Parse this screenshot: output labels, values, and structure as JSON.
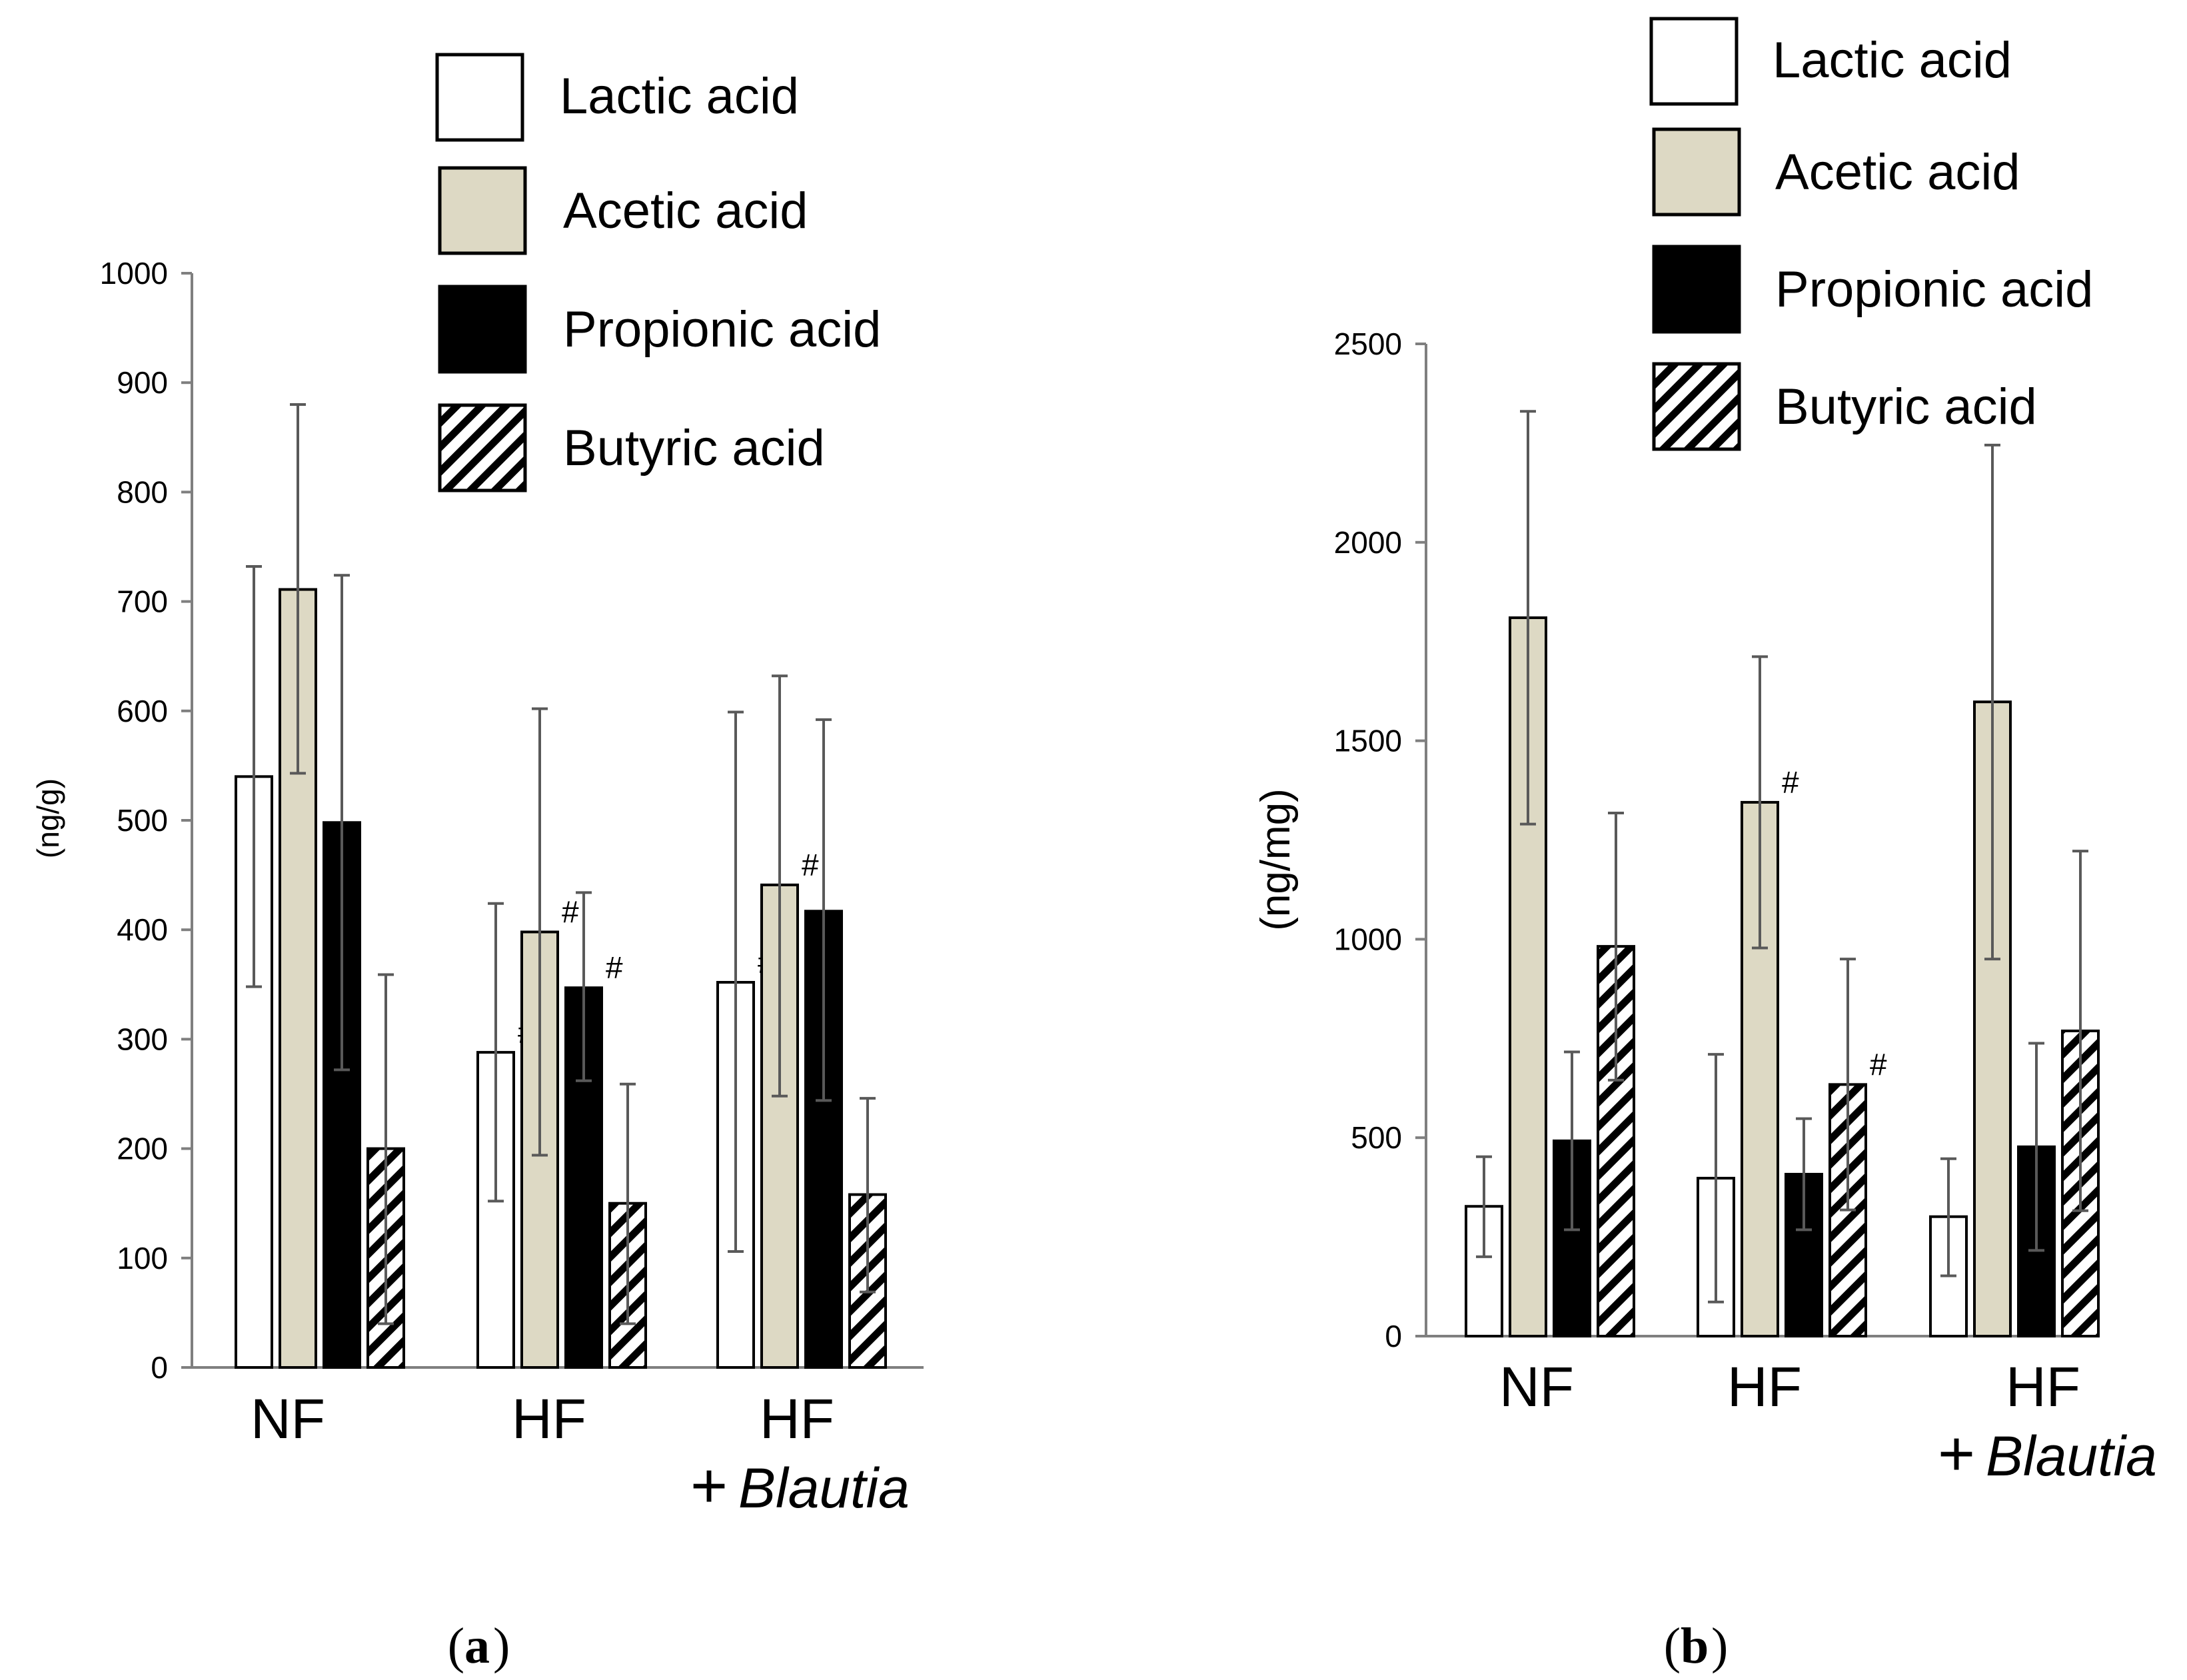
{
  "colors": {
    "lactic": "#ffffff",
    "acetic": "#ddd9c4",
    "propionic": "#000000",
    "butyric_stripe": "#000000",
    "axis": "#7f7f7f",
    "errorbar": "#595959"
  },
  "chart_data": [
    {
      "panel": "a",
      "caption_label": "a",
      "type": "bar",
      "ylabel": "(ng/g)",
      "ylim": [
        0,
        1000
      ],
      "yticks": [
        "0",
        "100",
        "200",
        "300",
        "400",
        "500",
        "600",
        "700",
        "800",
        "900",
        "1000"
      ],
      "ytick_values": [
        0,
        100,
        200,
        300,
        400,
        500,
        600,
        700,
        800,
        900,
        1000
      ],
      "categories": [
        {
          "line1": "NF",
          "plus": "",
          "line2": ""
        },
        {
          "line1": "HF",
          "plus": "",
          "line2": ""
        },
        {
          "line1": "HF",
          "plus": "+",
          "line2": "Blautia"
        }
      ],
      "legend": {
        "position": "top-right",
        "entries": [
          "Lactic acid",
          "Acetic acid",
          "Propionic acid",
          "Butyric acid"
        ]
      },
      "series": [
        {
          "name": "Lactic acid",
          "key": "lactic",
          "values": [
            540,
            288,
            352
          ],
          "err_low": [
            348,
            152,
            106
          ],
          "err_high": [
            732,
            424,
            599
          ],
          "marks": [
            "",
            "#",
            "#"
          ]
        },
        {
          "name": "Acetic acid",
          "key": "acetic",
          "values": [
            711,
            398,
            441
          ],
          "err_low": [
            543,
            194,
            248
          ],
          "err_high": [
            880,
            602,
            632
          ],
          "marks": [
            "",
            "#",
            "#"
          ]
        },
        {
          "name": "Propionic acid",
          "key": "propionic",
          "values": [
            498,
            347,
            417
          ],
          "err_low": [
            272,
            262,
            244
          ],
          "err_high": [
            724,
            434,
            592
          ],
          "marks": [
            "",
            "#",
            ""
          ]
        },
        {
          "name": "Butyric acid",
          "key": "butyric",
          "values": [
            200,
            150,
            158
          ],
          "err_low": [
            40,
            40,
            69
          ],
          "err_high": [
            359,
            259,
            246
          ],
          "marks": [
            "",
            "",
            ""
          ]
        }
      ]
    },
    {
      "panel": "b",
      "caption_label": "b",
      "type": "bar",
      "ylabel": "(ng/mg)",
      "ylim": [
        0,
        2500
      ],
      "yticks": [
        "0",
        "500",
        "1000",
        "1500",
        "2000",
        "2500"
      ],
      "ytick_values": [
        0,
        500,
        1000,
        1500,
        2000,
        2500
      ],
      "categories": [
        {
          "line1": "NF",
          "plus": "",
          "line2": ""
        },
        {
          "line1": "HF",
          "plus": "",
          "line2": ""
        },
        {
          "line1": "HF",
          "plus": "+",
          "line2": "Blautia"
        }
      ],
      "legend": {
        "position": "top-right",
        "entries": [
          "Lactic acid",
          "Acetic acid",
          "Propionic acid",
          "Butyric acid"
        ]
      },
      "series": [
        {
          "name": "Lactic acid",
          "key": "lactic",
          "values": [
            327,
            398,
            301
          ],
          "err_low": [
            200,
            86,
            152
          ],
          "err_high": [
            452,
            710,
            447
          ],
          "marks": [
            "",
            "",
            ""
          ]
        },
        {
          "name": "Acetic acid",
          "key": "acetic",
          "values": [
            1810,
            1345,
            1598
          ],
          "err_low": [
            1290,
            978,
            950
          ],
          "err_high": [
            2330,
            1712,
            2245
          ],
          "marks": [
            "",
            "#",
            ""
          ]
        },
        {
          "name": "Propionic acid",
          "key": "propionic",
          "values": [
            492,
            408,
            477
          ],
          "err_low": [
            268,
            268,
            216
          ],
          "err_high": [
            716,
            548,
            738
          ],
          "marks": [
            "",
            "",
            ""
          ]
        },
        {
          "name": "Butyric acid",
          "key": "butyric",
          "values": [
            982,
            634,
            769
          ],
          "err_low": [
            645,
            318,
            316
          ],
          "err_high": [
            1318,
            950,
            1222
          ],
          "marks": [
            "",
            "#",
            ""
          ]
        }
      ]
    }
  ]
}
